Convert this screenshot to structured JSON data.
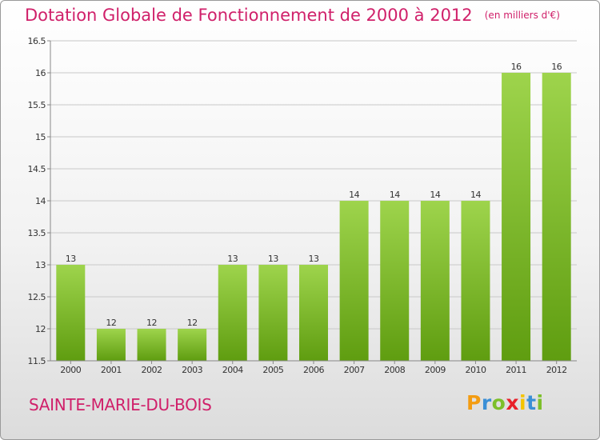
{
  "header": {
    "title": "Dotation Globale de Fonctionnement de 2000 à 2012",
    "subtitle": "(en milliers d'€)"
  },
  "footer": {
    "commune": "SAINTE-MARIE-DU-BOIS",
    "logo_letters": [
      "P",
      "r",
      "o",
      "x",
      "i",
      "t",
      "i"
    ],
    "logo_colors": [
      "#f39c12",
      "#3a8fd6",
      "#7cbf2a",
      "#e8202a",
      "#f5c400",
      "#3a8fd6",
      "#7cbf2a"
    ]
  },
  "colors": {
    "accent": "#d0206a",
    "bar_top": "#9ed44c",
    "bar_bottom": "#5f9d10"
  },
  "chart_data": {
    "type": "bar",
    "categories": [
      "2000",
      "2001",
      "2002",
      "2003",
      "2004",
      "2005",
      "2006",
      "2007",
      "2008",
      "2009",
      "2010",
      "2011",
      "2012"
    ],
    "values": [
      13,
      12,
      12,
      12,
      13,
      13,
      13,
      14,
      14,
      14,
      14,
      16,
      16
    ],
    "data_labels": [
      "13",
      "12",
      "12",
      "12",
      "13",
      "13",
      "13",
      "14",
      "14",
      "14",
      "14",
      "16",
      "16"
    ],
    "yticks": [
      "11.5",
      "12",
      "12.5",
      "13",
      "13.5",
      "14",
      "14.5",
      "15",
      "15.5",
      "16",
      "16.5"
    ],
    "ylim": [
      11.5,
      16.5
    ],
    "grid": true,
    "xlabel": "",
    "ylabel": ""
  }
}
